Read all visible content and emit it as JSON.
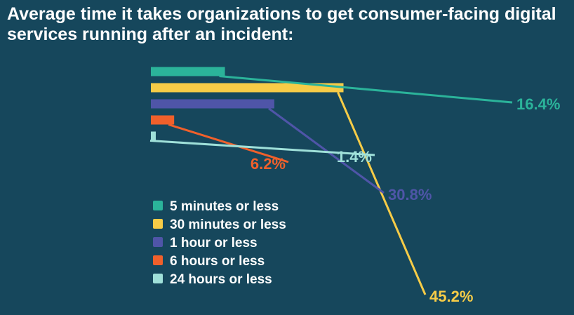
{
  "chart_data": {
    "type": "bar",
    "title": "Average time it takes organizations to get consumer-facing digital services running after an incident:",
    "legend_position": "bottom-left",
    "series": [
      {
        "name": "5 minutes or less",
        "value": 16.4,
        "label": "16.4%",
        "color": "#2bb39a"
      },
      {
        "name": "30 minutes or less",
        "value": 45.2,
        "label": "45.2%",
        "color": "#f7cc47"
      },
      {
        "name": "1 hour or less",
        "value": 30.8,
        "label": "30.8%",
        "color": "#4f55a8"
      },
      {
        "name": "6 hours or less",
        "value": 6.2,
        "label": "6.2%",
        "color": "#f0602b"
      },
      {
        "name": "24 hours or less",
        "value": 1.4,
        "label": "1.4%",
        "color": "#9fe0d9"
      }
    ]
  }
}
